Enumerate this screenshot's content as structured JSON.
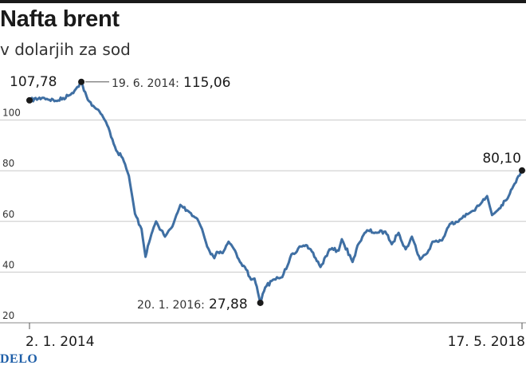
{
  "header": {
    "title": "Nafta brent",
    "subtitle": "v dolarjih za sod"
  },
  "brand": "DELO",
  "colors": {
    "line": "#3f6fa3",
    "grid": "#c8c8c8",
    "text": "#1a1a1a"
  },
  "chart_data": {
    "type": "line",
    "title": "Nafta brent",
    "subtitle": "v dolarjih za sod",
    "xlabel": "",
    "ylabel": "",
    "ylim": [
      20,
      120
    ],
    "grid": true,
    "yticks": [
      20,
      40,
      60,
      80,
      100
    ],
    "ytick_labels": [
      "20",
      "40",
      "60",
      "80",
      "100"
    ],
    "xtick_labels": [
      "2. 1. 2014",
      "17. 5. 2018"
    ],
    "x_start": "2014-01-02",
    "x_end": "2018-05-17",
    "series": [
      {
        "x": [
          "2014-01-02",
          "2014-02-15",
          "2014-04-01",
          "2014-05-15",
          "2014-06-19",
          "2014-07-10",
          "2014-08-01",
          "2014-08-25",
          "2014-09-15",
          "2014-10-10",
          "2014-10-31",
          "2014-11-20",
          "2014-12-10",
          "2014-12-31",
          "2015-01-13",
          "2015-02-01",
          "2015-02-16",
          "2015-03-17",
          "2015-04-10",
          "2015-05-06",
          "2015-06-01",
          "2015-06-30",
          "2015-07-15",
          "2015-08-01",
          "2015-08-24",
          "2015-09-01",
          "2015-09-20",
          "2015-10-09",
          "2015-10-30",
          "2015-11-15",
          "2015-12-01",
          "2015-12-21",
          "2016-01-01",
          "2016-01-20",
          "2016-02-05",
          "2016-03-01",
          "2016-03-31",
          "2016-04-30",
          "2016-06-08",
          "2016-07-01",
          "2016-08-02",
          "2016-08-31",
          "2016-09-30",
          "2016-10-10",
          "2016-11-14",
          "2016-11-30",
          "2016-12-31",
          "2017-01-31",
          "2017-02-28",
          "2017-03-21",
          "2017-04-12",
          "2017-05-05",
          "2017-05-25",
          "2017-06-21",
          "2017-07-14",
          "2017-07-31",
          "2017-08-31",
          "2017-09-25",
          "2017-10-31",
          "2017-11-30",
          "2017-12-31",
          "2018-01-24",
          "2018-02-09",
          "2018-02-28",
          "2018-03-31",
          "2018-04-19",
          "2018-05-17"
        ],
        "y": [
          107.78,
          108.8,
          107.5,
          110.0,
          115.06,
          108.0,
          105.0,
          102.0,
          97.0,
          88.0,
          85.0,
          78.0,
          63.0,
          57.0,
          46.0,
          55.0,
          60.0,
          54.0,
          58.0,
          66.5,
          64.0,
          61.0,
          57.0,
          50.0,
          45.5,
          48.0,
          47.5,
          52.0,
          48.5,
          44.0,
          42.0,
          37.0,
          37.5,
          27.88,
          34.0,
          37.0,
          38.0,
          47.0,
          50.5,
          49.0,
          42.0,
          49.0,
          48.5,
          53.0,
          44.0,
          50.5,
          56.5,
          55.5,
          56.0,
          51.0,
          55.5,
          49.0,
          54.0,
          45.0,
          47.5,
          52.0,
          52.5,
          59.0,
          61.0,
          63.5,
          66.5,
          70.0,
          62.5,
          64.5,
          69.0,
          74.0,
          80.1
        ]
      }
    ],
    "annotations": [
      {
        "date": "",
        "value": "107,78",
        "x": "2014-01-02",
        "y": 107.78
      },
      {
        "date": "19. 6. 2014:",
        "value": "115,06",
        "x": "2014-06-19",
        "y": 115.06
      },
      {
        "date": "20. 1. 2016:",
        "value": "27,88",
        "x": "2016-01-20",
        "y": 27.88
      },
      {
        "date": "",
        "value": "80,10",
        "x": "2018-05-17",
        "y": 80.1
      }
    ]
  }
}
